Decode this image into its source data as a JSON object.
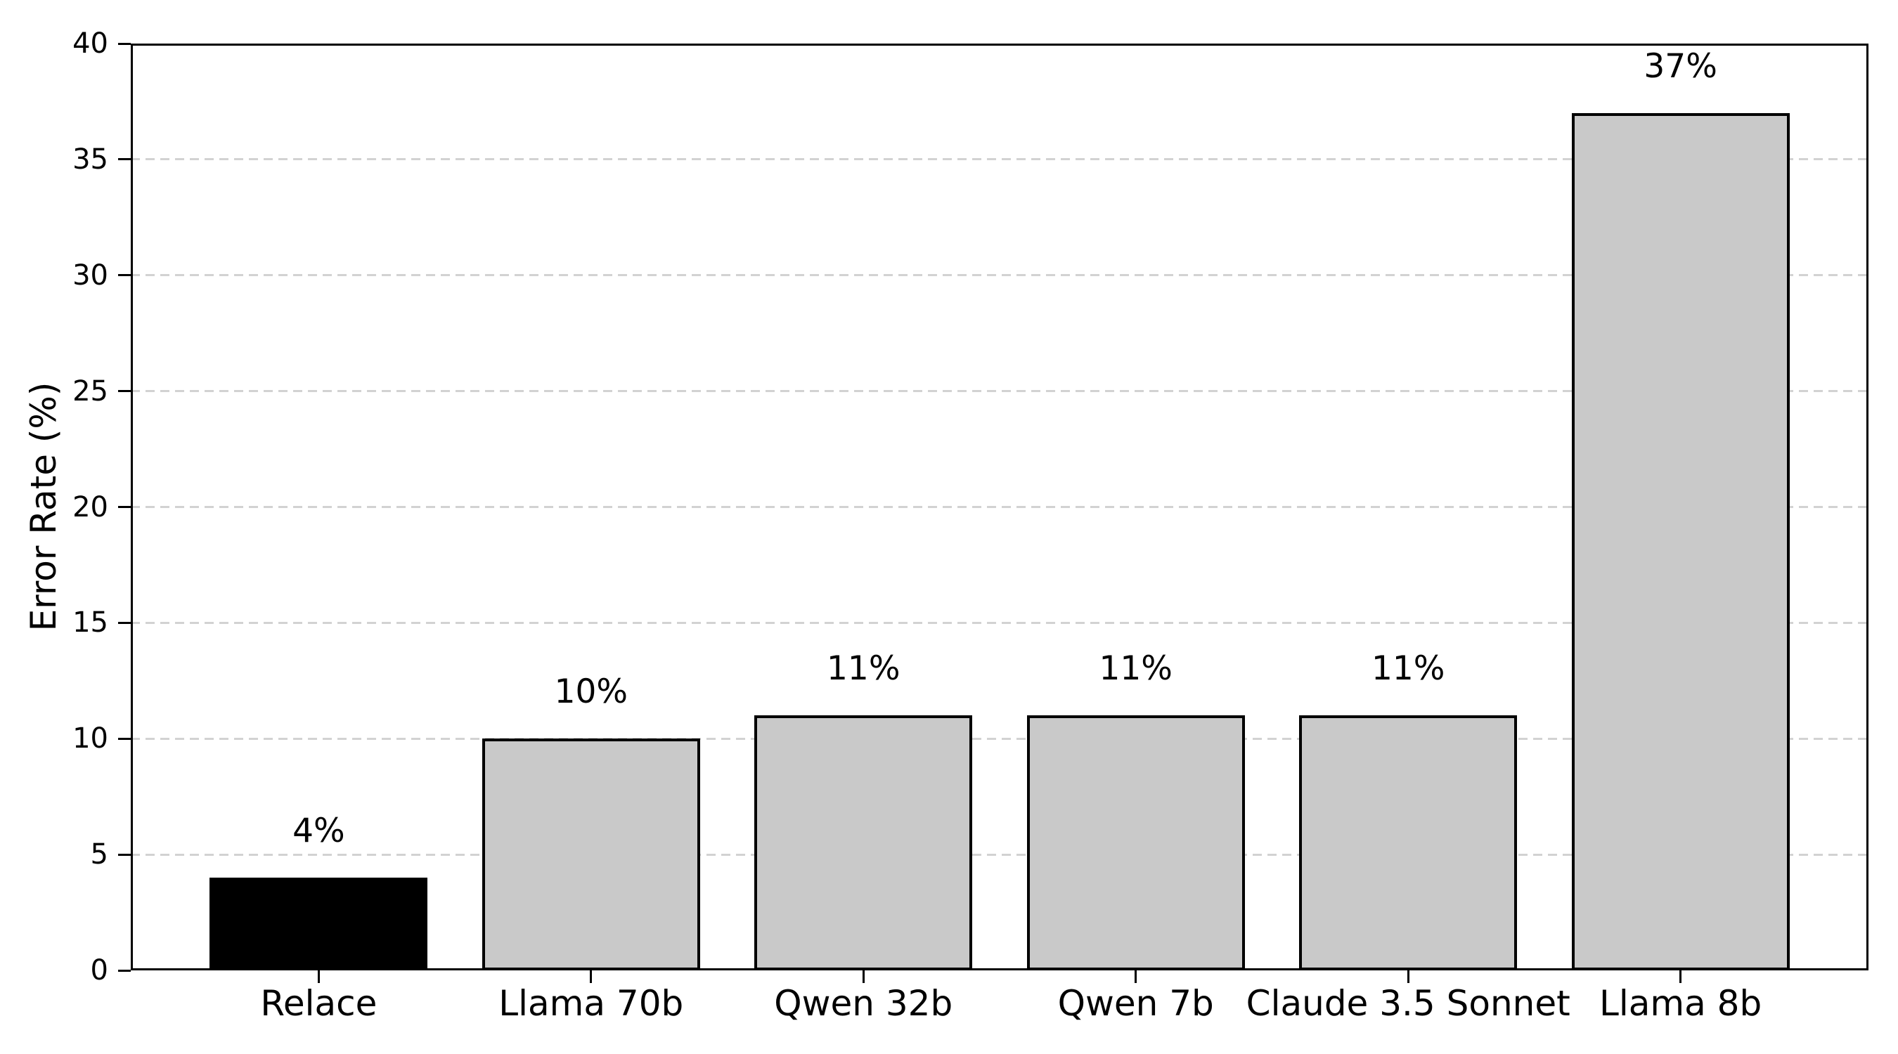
{
  "chart_data": {
    "type": "bar",
    "categories": [
      "Relace",
      "Llama 70b",
      "Qwen 32b",
      "Qwen 7b",
      "Claude 3.5 Sonnet",
      "Llama 8b"
    ],
    "values": [
      4,
      10,
      11,
      11,
      11,
      37
    ],
    "value_labels": [
      "4%",
      "10%",
      "11%",
      "11%",
      "11%",
      "37%"
    ],
    "title": "",
    "xlabel": "",
    "ylabel": "Error Rate (%)",
    "ylim": [
      0,
      40
    ],
    "yticks": [
      0,
      5,
      10,
      15,
      20,
      25,
      30,
      35,
      40
    ],
    "grid": "horizontal-dashed",
    "legend": "none",
    "bar_colors": [
      "#000000",
      "#c9c9c9",
      "#c9c9c9",
      "#c9c9c9",
      "#c9c9c9",
      "#c9c9c9"
    ],
    "bar_edge_color": "#000000",
    "grid_color": "#d2d2d2",
    "axis_color": "#000000",
    "background_color": "#ffffff"
  }
}
